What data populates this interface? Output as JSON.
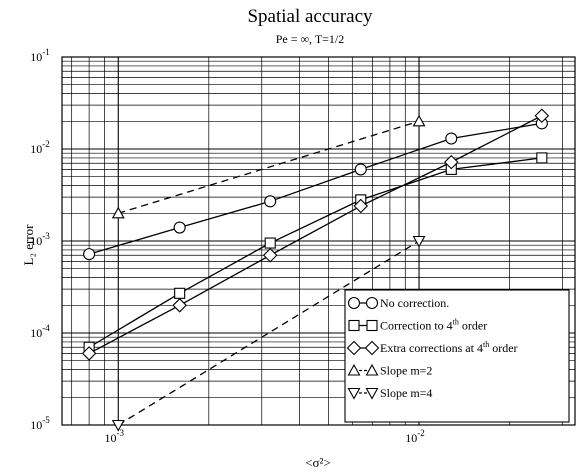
{
  "chart_data": {
    "type": "line",
    "title": "Spatial accuracy",
    "subtitle": "Pe = ∞,  T=1/2",
    "xlabel": "<σ²>",
    "ylabel": "L₂ error",
    "xscale": "log",
    "yscale": "log",
    "xlim": [
      0.00065,
      0.033
    ],
    "ylim": [
      1e-05,
      0.1
    ],
    "grid": true,
    "legend_position": "bottom-right",
    "x_ticks": [
      {
        "value": 0.001,
        "base": "10",
        "exp": "-3"
      },
      {
        "value": 0.01,
        "base": "10",
        "exp": "-2"
      }
    ],
    "y_ticks": [
      {
        "value": 0.1,
        "base": "10",
        "exp": "-1"
      },
      {
        "value": 0.01,
        "base": "10",
        "exp": "-2"
      },
      {
        "value": 0.001,
        "base": "10",
        "exp": "-3"
      },
      {
        "value": 0.0001,
        "base": "10",
        "exp": "-4"
      },
      {
        "value": 1e-05,
        "base": "10",
        "exp": "-5"
      }
    ],
    "series": [
      {
        "name": "No correction.",
        "marker": "circle",
        "dash": "solid",
        "x": [
          0.0008,
          0.0016,
          0.0032,
          0.0064,
          0.0128,
          0.0256
        ],
        "y": [
          0.00072,
          0.0014,
          0.0027,
          0.006,
          0.013,
          0.019
        ]
      },
      {
        "name": "Correction to 4th order",
        "legend_main": "Correction to 4",
        "legend_sup": "th",
        "legend_tail": " order",
        "marker": "square",
        "dash": "solid",
        "x": [
          0.0008,
          0.0016,
          0.0032,
          0.0064,
          0.0128,
          0.0256
        ],
        "y": [
          7e-05,
          0.00027,
          0.00095,
          0.0028,
          0.006,
          0.008
        ]
      },
      {
        "name": "Extra corrections at 4th order",
        "legend_main": "Extra corrections at 4",
        "legend_sup": "th",
        "legend_tail": " order",
        "marker": "diamond",
        "dash": "solid",
        "x": [
          0.0008,
          0.0016,
          0.0032,
          0.0064,
          0.0128,
          0.0256
        ],
        "y": [
          6e-05,
          0.0002,
          0.0007,
          0.0024,
          0.0072,
          0.023
        ]
      },
      {
        "name": "Slope m=2",
        "marker": "triangle-up",
        "dash": "dashed",
        "x": [
          0.001,
          0.01
        ],
        "y": [
          0.002,
          0.02
        ]
      },
      {
        "name": "Slope m=4",
        "marker": "triangle-down",
        "dash": "dashed",
        "x": [
          0.001,
          0.01
        ],
        "y": [
          1e-05,
          0.001
        ]
      }
    ]
  }
}
